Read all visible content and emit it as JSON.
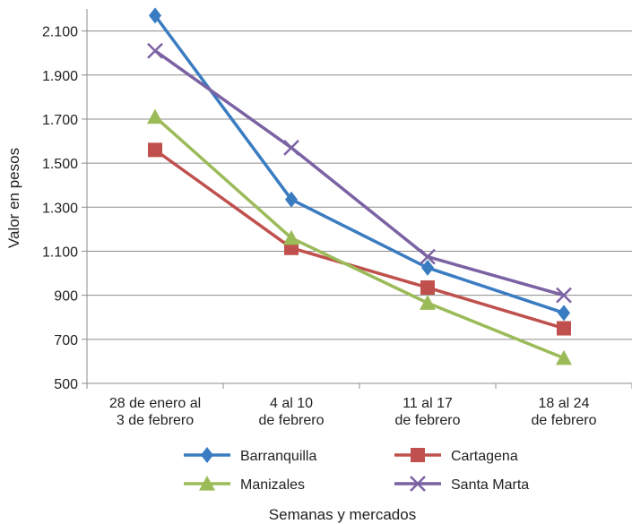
{
  "chart_data": {
    "type": "line",
    "title": "",
    "xlabel": "Semanas y mercados",
    "ylabel": "Valor en pesos",
    "ylim": [
      500,
      2200
    ],
    "yticks": [
      500,
      700,
      900,
      1100,
      1300,
      1500,
      1700,
      1900,
      2100
    ],
    "ytick_labels": [
      "500",
      "700",
      "900",
      "1.100",
      "1.300",
      "1.500",
      "1.700",
      "1.900",
      "2.100"
    ],
    "categories": [
      [
        "28 de enero al",
        "3 de febrero"
      ],
      [
        "4 al 10",
        "de febrero"
      ],
      [
        "11 al 17",
        "de febrero"
      ],
      [
        "18 al 24",
        "de febrero"
      ]
    ],
    "grid": true,
    "legend_position": "bottom",
    "series": [
      {
        "name": "Barranquilla",
        "color": "#3a7cc1",
        "marker": "diamond",
        "values": [
          2170,
          1335,
          1025,
          820
        ]
      },
      {
        "name": "Cartagena",
        "color": "#c0504d",
        "marker": "square",
        "values": [
          1560,
          1115,
          935,
          750
        ]
      },
      {
        "name": "Manizales",
        "color": "#9bbb59",
        "marker": "triangle",
        "values": [
          1710,
          1160,
          865,
          615
        ]
      },
      {
        "name": "Santa Marta",
        "color": "#7b62a3",
        "marker": "x",
        "values": [
          2010,
          1570,
          1075,
          900
        ]
      }
    ]
  }
}
